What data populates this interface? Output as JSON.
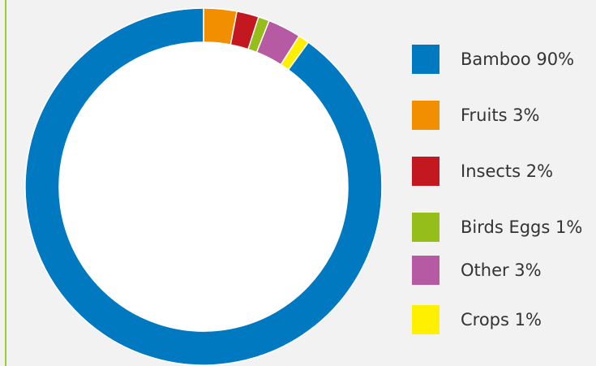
{
  "chart_data": {
    "type": "pie",
    "donut": true,
    "legend_position": "right",
    "series": [
      {
        "name": "Bamboo",
        "value": 90,
        "label": "Bamboo 90%",
        "color": "#0079c1"
      },
      {
        "name": "Fruits",
        "value": 3,
        "label": "Fruits 3%",
        "color": "#f18f00"
      },
      {
        "name": "Insects",
        "value": 2,
        "label": "Insects 2%",
        "color": "#c41821"
      },
      {
        "name": "Birds Eggs",
        "value": 1,
        "label": "Birds Eggs 1%",
        "color": "#95be1a"
      },
      {
        "name": "Other",
        "value": 3,
        "label": "Other 3%",
        "color": "#b65ba3"
      },
      {
        "name": "Crops",
        "value": 1,
        "label": "Crops 1%",
        "color": "#fff000"
      }
    ]
  },
  "colors": {
    "background": "#f2f2f2",
    "border_accent": "#9acd32"
  }
}
